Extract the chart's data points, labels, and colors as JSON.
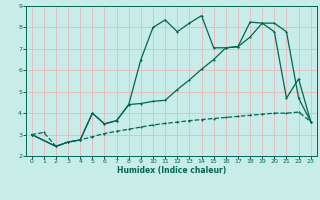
{
  "title": "",
  "xlabel": "Humidex (Indice chaleur)",
  "background_color": "#c8ece8",
  "grid_color": "#e8b8b8",
  "line_color": "#006655",
  "xlim": [
    -0.5,
    23.5
  ],
  "ylim": [
    2,
    9
  ],
  "xticks": [
    0,
    1,
    2,
    3,
    4,
    5,
    6,
    7,
    8,
    9,
    10,
    11,
    12,
    13,
    14,
    15,
    16,
    17,
    18,
    19,
    20,
    21,
    22,
    23
  ],
  "yticks": [
    2,
    3,
    4,
    5,
    6,
    7,
    8,
    9
  ],
  "s1_x": [
    0,
    1,
    2,
    3,
    4,
    5,
    6,
    7,
    8,
    9,
    10,
    11,
    12,
    13,
    14,
    15,
    16,
    17,
    18,
    19,
    20,
    21,
    22,
    23
  ],
  "s1_y": [
    3.0,
    3.1,
    2.45,
    2.65,
    2.75,
    2.9,
    3.05,
    3.15,
    3.25,
    3.35,
    3.45,
    3.52,
    3.58,
    3.65,
    3.7,
    3.75,
    3.8,
    3.85,
    3.9,
    3.95,
    4.0,
    4.0,
    4.05,
    3.6
  ],
  "s2_x": [
    0,
    2,
    3,
    4,
    5,
    6,
    7,
    8,
    9,
    10,
    11,
    12,
    13,
    14,
    15,
    16,
    17,
    18,
    19,
    20,
    21,
    22,
    23
  ],
  "s2_y": [
    3.0,
    2.45,
    2.65,
    2.75,
    4.0,
    3.5,
    3.65,
    4.4,
    6.5,
    8.0,
    8.35,
    7.8,
    8.2,
    8.55,
    7.05,
    7.05,
    7.1,
    8.25,
    8.2,
    7.8,
    4.7,
    5.6,
    3.6
  ],
  "s3_x": [
    0,
    2,
    3,
    4,
    5,
    6,
    7,
    8,
    9,
    10,
    11,
    12,
    13,
    14,
    15,
    16,
    17,
    18,
    19,
    20,
    21,
    22,
    23
  ],
  "s3_y": [
    3.0,
    2.45,
    2.65,
    2.75,
    4.0,
    3.5,
    3.65,
    4.4,
    4.45,
    4.55,
    4.6,
    5.1,
    5.55,
    6.05,
    6.5,
    7.05,
    7.1,
    7.55,
    8.2,
    8.2,
    7.8,
    4.7,
    3.6
  ]
}
